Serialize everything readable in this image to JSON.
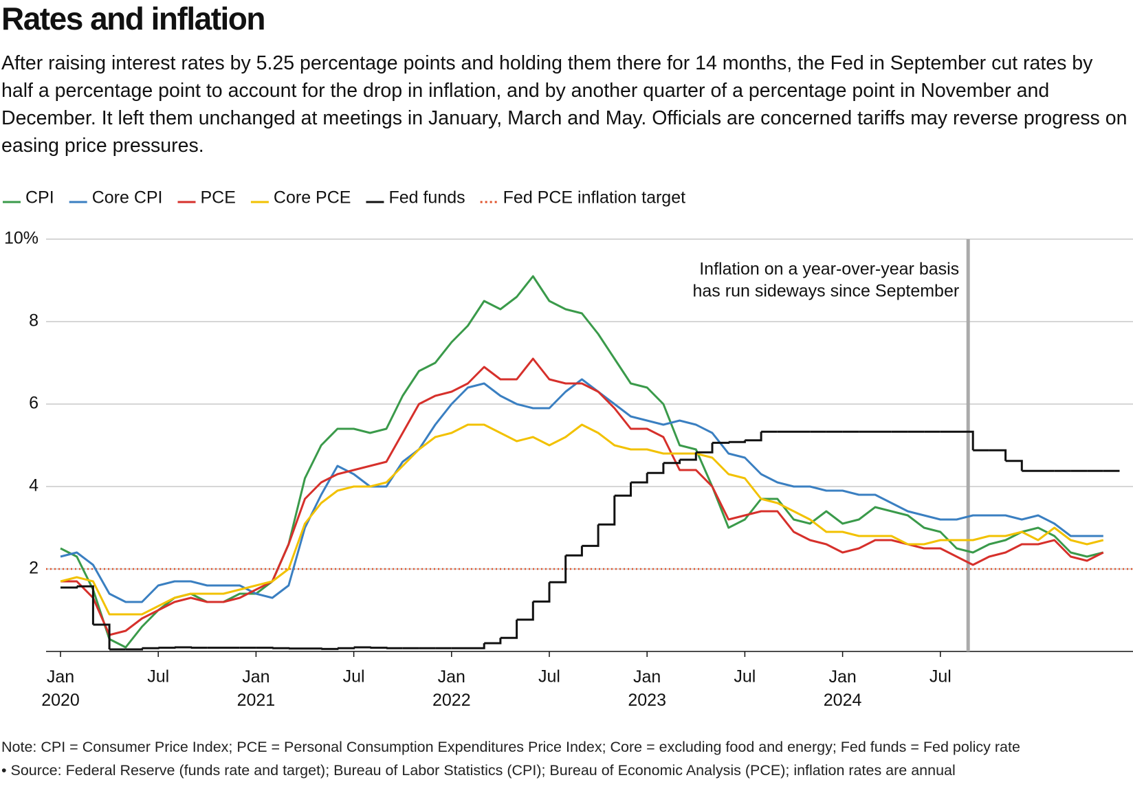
{
  "chart_data": {
    "type": "line",
    "title": "Rates and inflation",
    "subtitle": "After raising interest rates by 5.25 percentage points and holding them there for 14 months, the Fed in September cut rates by half a percentage point to account for the drop in inflation, and by another quarter of a percentage point in November and December. It left them unchanged at meetings in January, March and May. Officials are concerned tariffs may reverse progress on easing price pressures.",
    "x": [
      "2020-01",
      "2020-02",
      "2020-03",
      "2020-04",
      "2020-05",
      "2020-06",
      "2020-07",
      "2020-08",
      "2020-09",
      "2020-10",
      "2020-11",
      "2020-12",
      "2021-01",
      "2021-02",
      "2021-03",
      "2021-04",
      "2021-05",
      "2021-06",
      "2021-07",
      "2021-08",
      "2021-09",
      "2021-10",
      "2021-11",
      "2021-12",
      "2022-01",
      "2022-02",
      "2022-03",
      "2022-04",
      "2022-05",
      "2022-06",
      "2022-07",
      "2022-08",
      "2022-09",
      "2022-10",
      "2022-11",
      "2022-12",
      "2023-01",
      "2023-02",
      "2023-03",
      "2023-04",
      "2023-05",
      "2023-06",
      "2023-07",
      "2023-08",
      "2023-09",
      "2023-10",
      "2023-11",
      "2023-12",
      "2024-01",
      "2024-02",
      "2024-03",
      "2024-04",
      "2024-05",
      "2024-06",
      "2024-07",
      "2024-08",
      "2024-09",
      "2024-10",
      "2024-11",
      "2024-12",
      "2025-01",
      "2025-02",
      "2025-03",
      "2025-04",
      "2025-05",
      "2025-06"
    ],
    "series": [
      {
        "name": "CPI",
        "color": "#3a9a4a",
        "values": [
          2.5,
          2.3,
          1.5,
          0.3,
          0.1,
          0.6,
          1.0,
          1.3,
          1.4,
          1.2,
          1.2,
          1.4,
          1.4,
          1.7,
          2.6,
          4.2,
          5.0,
          5.4,
          5.4,
          5.3,
          5.4,
          6.2,
          6.8,
          7.0,
          7.5,
          7.9,
          8.5,
          8.3,
          8.6,
          9.1,
          8.5,
          8.3,
          8.2,
          7.7,
          7.1,
          6.5,
          6.4,
          6.0,
          5.0,
          4.9,
          4.0,
          3.0,
          3.2,
          3.7,
          3.7,
          3.2,
          3.1,
          3.4,
          3.1,
          3.2,
          3.5,
          3.4,
          3.3,
          3.0,
          2.9,
          2.5,
          2.4,
          2.6,
          2.7,
          2.9,
          3.0,
          2.8,
          2.4,
          2.3,
          2.4,
          null
        ]
      },
      {
        "name": "Core CPI",
        "color": "#3a7fc1",
        "values": [
          2.3,
          2.4,
          2.1,
          1.4,
          1.2,
          1.2,
          1.6,
          1.7,
          1.7,
          1.6,
          1.6,
          1.6,
          1.4,
          1.3,
          1.6,
          3.0,
          3.8,
          4.5,
          4.3,
          4.0,
          4.0,
          4.6,
          4.9,
          5.5,
          6.0,
          6.4,
          6.5,
          6.2,
          6.0,
          5.9,
          5.9,
          6.3,
          6.6,
          6.3,
          6.0,
          5.7,
          5.6,
          5.5,
          5.6,
          5.5,
          5.3,
          4.8,
          4.7,
          4.3,
          4.1,
          4.0,
          4.0,
          3.9,
          3.9,
          3.8,
          3.8,
          3.6,
          3.4,
          3.3,
          3.2,
          3.2,
          3.3,
          3.3,
          3.3,
          3.2,
          3.3,
          3.1,
          2.8,
          2.8,
          2.8,
          null
        ]
      },
      {
        "name": "PCE",
        "color": "#d6302b",
        "values": [
          1.7,
          1.7,
          1.3,
          0.4,
          0.5,
          0.8,
          1.0,
          1.2,
          1.3,
          1.2,
          1.2,
          1.3,
          1.5,
          1.7,
          2.6,
          3.7,
          4.1,
          4.3,
          4.4,
          4.5,
          4.6,
          5.3,
          6.0,
          6.2,
          6.3,
          6.5,
          6.9,
          6.6,
          6.6,
          7.1,
          6.6,
          6.5,
          6.5,
          6.3,
          5.9,
          5.4,
          5.4,
          5.2,
          4.4,
          4.4,
          4.0,
          3.2,
          3.3,
          3.4,
          3.4,
          2.9,
          2.7,
          2.6,
          2.4,
          2.5,
          2.7,
          2.7,
          2.6,
          2.5,
          2.5,
          2.3,
          2.1,
          2.3,
          2.4,
          2.6,
          2.6,
          2.7,
          2.3,
          2.2,
          2.4,
          null
        ]
      },
      {
        "name": "Core PCE",
        "color": "#f2c100",
        "values": [
          1.7,
          1.8,
          1.7,
          0.9,
          0.9,
          0.9,
          1.1,
          1.3,
          1.4,
          1.4,
          1.4,
          1.5,
          1.6,
          1.7,
          2.0,
          3.1,
          3.6,
          3.9,
          4.0,
          4.0,
          4.1,
          4.5,
          4.9,
          5.2,
          5.3,
          5.5,
          5.5,
          5.3,
          5.1,
          5.2,
          5.0,
          5.2,
          5.5,
          5.3,
          5.0,
          4.9,
          4.9,
          4.8,
          4.8,
          4.8,
          4.7,
          4.3,
          4.2,
          3.7,
          3.6,
          3.4,
          3.2,
          2.9,
          2.9,
          2.8,
          2.8,
          2.8,
          2.6,
          2.6,
          2.7,
          2.7,
          2.7,
          2.8,
          2.8,
          2.9,
          2.7,
          3.0,
          2.7,
          2.6,
          2.7,
          null
        ]
      },
      {
        "name": "Fed funds",
        "color": "#111111",
        "step": true,
        "values": [
          1.55,
          1.58,
          0.65,
          0.05,
          0.05,
          0.08,
          0.09,
          0.1,
          0.09,
          0.09,
          0.09,
          0.09,
          0.09,
          0.08,
          0.07,
          0.07,
          0.06,
          0.08,
          0.1,
          0.09,
          0.08,
          0.08,
          0.08,
          0.08,
          0.08,
          0.08,
          0.2,
          0.33,
          0.77,
          1.21,
          1.68,
          2.33,
          2.56,
          3.08,
          3.78,
          4.1,
          4.33,
          4.57,
          4.65,
          4.83,
          5.06,
          5.08,
          5.12,
          5.33,
          5.33,
          5.33,
          5.33,
          5.33,
          5.33,
          5.33,
          5.33,
          5.33,
          5.33,
          5.33,
          5.33,
          5.33,
          4.88,
          4.88,
          4.62,
          4.38,
          4.38,
          4.38,
          4.38,
          4.38,
          4.38,
          4.38
        ]
      }
    ],
    "reference_line": {
      "name": "Fed PCE inflation target",
      "value": 2,
      "color": "#e0522a",
      "style": "dotted"
    },
    "ylim": [
      0,
      10
    ],
    "yticks": [
      2,
      4,
      6,
      8,
      {
        "value": 10,
        "label": "10%"
      }
    ],
    "xticks": [
      {
        "value": "2020-01",
        "label": "Jan 2020"
      },
      {
        "value": "2020-07",
        "label": "Jul"
      },
      {
        "value": "2021-01",
        "label": "Jan 2021"
      },
      {
        "value": "2021-07",
        "label": "Jul"
      },
      {
        "value": "2022-01",
        "label": "Jan 2022"
      },
      {
        "value": "2022-07",
        "label": "Jul"
      },
      {
        "value": "2023-01",
        "label": "Jan 2023"
      },
      {
        "value": "2023-07",
        "label": "Jul"
      },
      {
        "value": "2024-01",
        "label": "Jan 2024"
      },
      {
        "value": "2024-07",
        "label": "Jul"
      }
    ],
    "grid": true,
    "legend": "top-left",
    "annotation": {
      "x": "2024-09",
      "lines": [
        "Inflation on a year-over-year basis",
        "has run sideways since September"
      ]
    },
    "note": "Note: CPI = Consumer Price Index; PCE = Personal Consumption Expenditures Price Index; Core = excluding food and energy; Fed funds = Fed policy rate",
    "source": "• Source: Federal Reserve (funds rate and target); Bureau of Labor Statistics (CPI); Bureau of Economic Analysis (PCE); inflation rates are annual"
  }
}
